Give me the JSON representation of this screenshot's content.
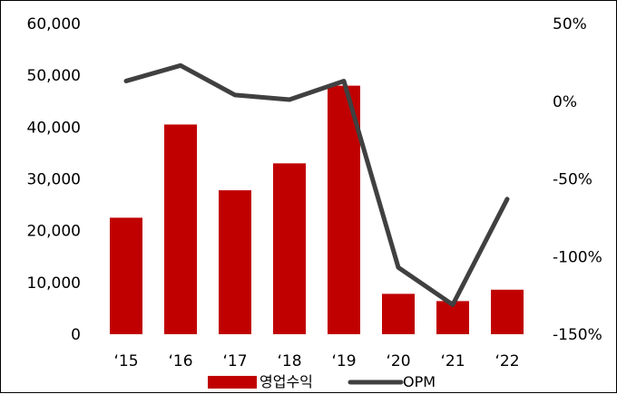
{
  "chart_data": {
    "type": "bar+line",
    "categories": [
      "‘15",
      "‘16",
      "‘17",
      "‘18",
      "‘19",
      "‘20",
      "‘21",
      "‘22"
    ],
    "series": [
      {
        "name": "영업수익",
        "type": "bar",
        "axis": "left",
        "color": "#C00000",
        "values": [
          22500,
          40500,
          27800,
          33000,
          48000,
          7800,
          6400,
          8600
        ]
      },
      {
        "name": "OPM",
        "type": "line",
        "axis": "right",
        "unit": "%",
        "color": "#404040",
        "values": [
          13,
          23,
          4,
          1,
          13,
          -107,
          -131,
          -63
        ]
      }
    ],
    "y_left": {
      "ylim": [
        0,
        60000
      ],
      "ticks": [
        0,
        10000,
        20000,
        30000,
        40000,
        50000,
        60000
      ],
      "tick_labels": [
        "0",
        "10,000",
        "20,000",
        "30,000",
        "40,000",
        "50,000",
        "60,000"
      ]
    },
    "y_right": {
      "ylim": [
        -150,
        50
      ],
      "ticks": [
        -150,
        -100,
        -50,
        0,
        50
      ],
      "tick_labels": [
        "-150%",
        "-100%",
        "-50%",
        "0%",
        "50%"
      ]
    },
    "grid": false,
    "legend": "bottom-center"
  }
}
